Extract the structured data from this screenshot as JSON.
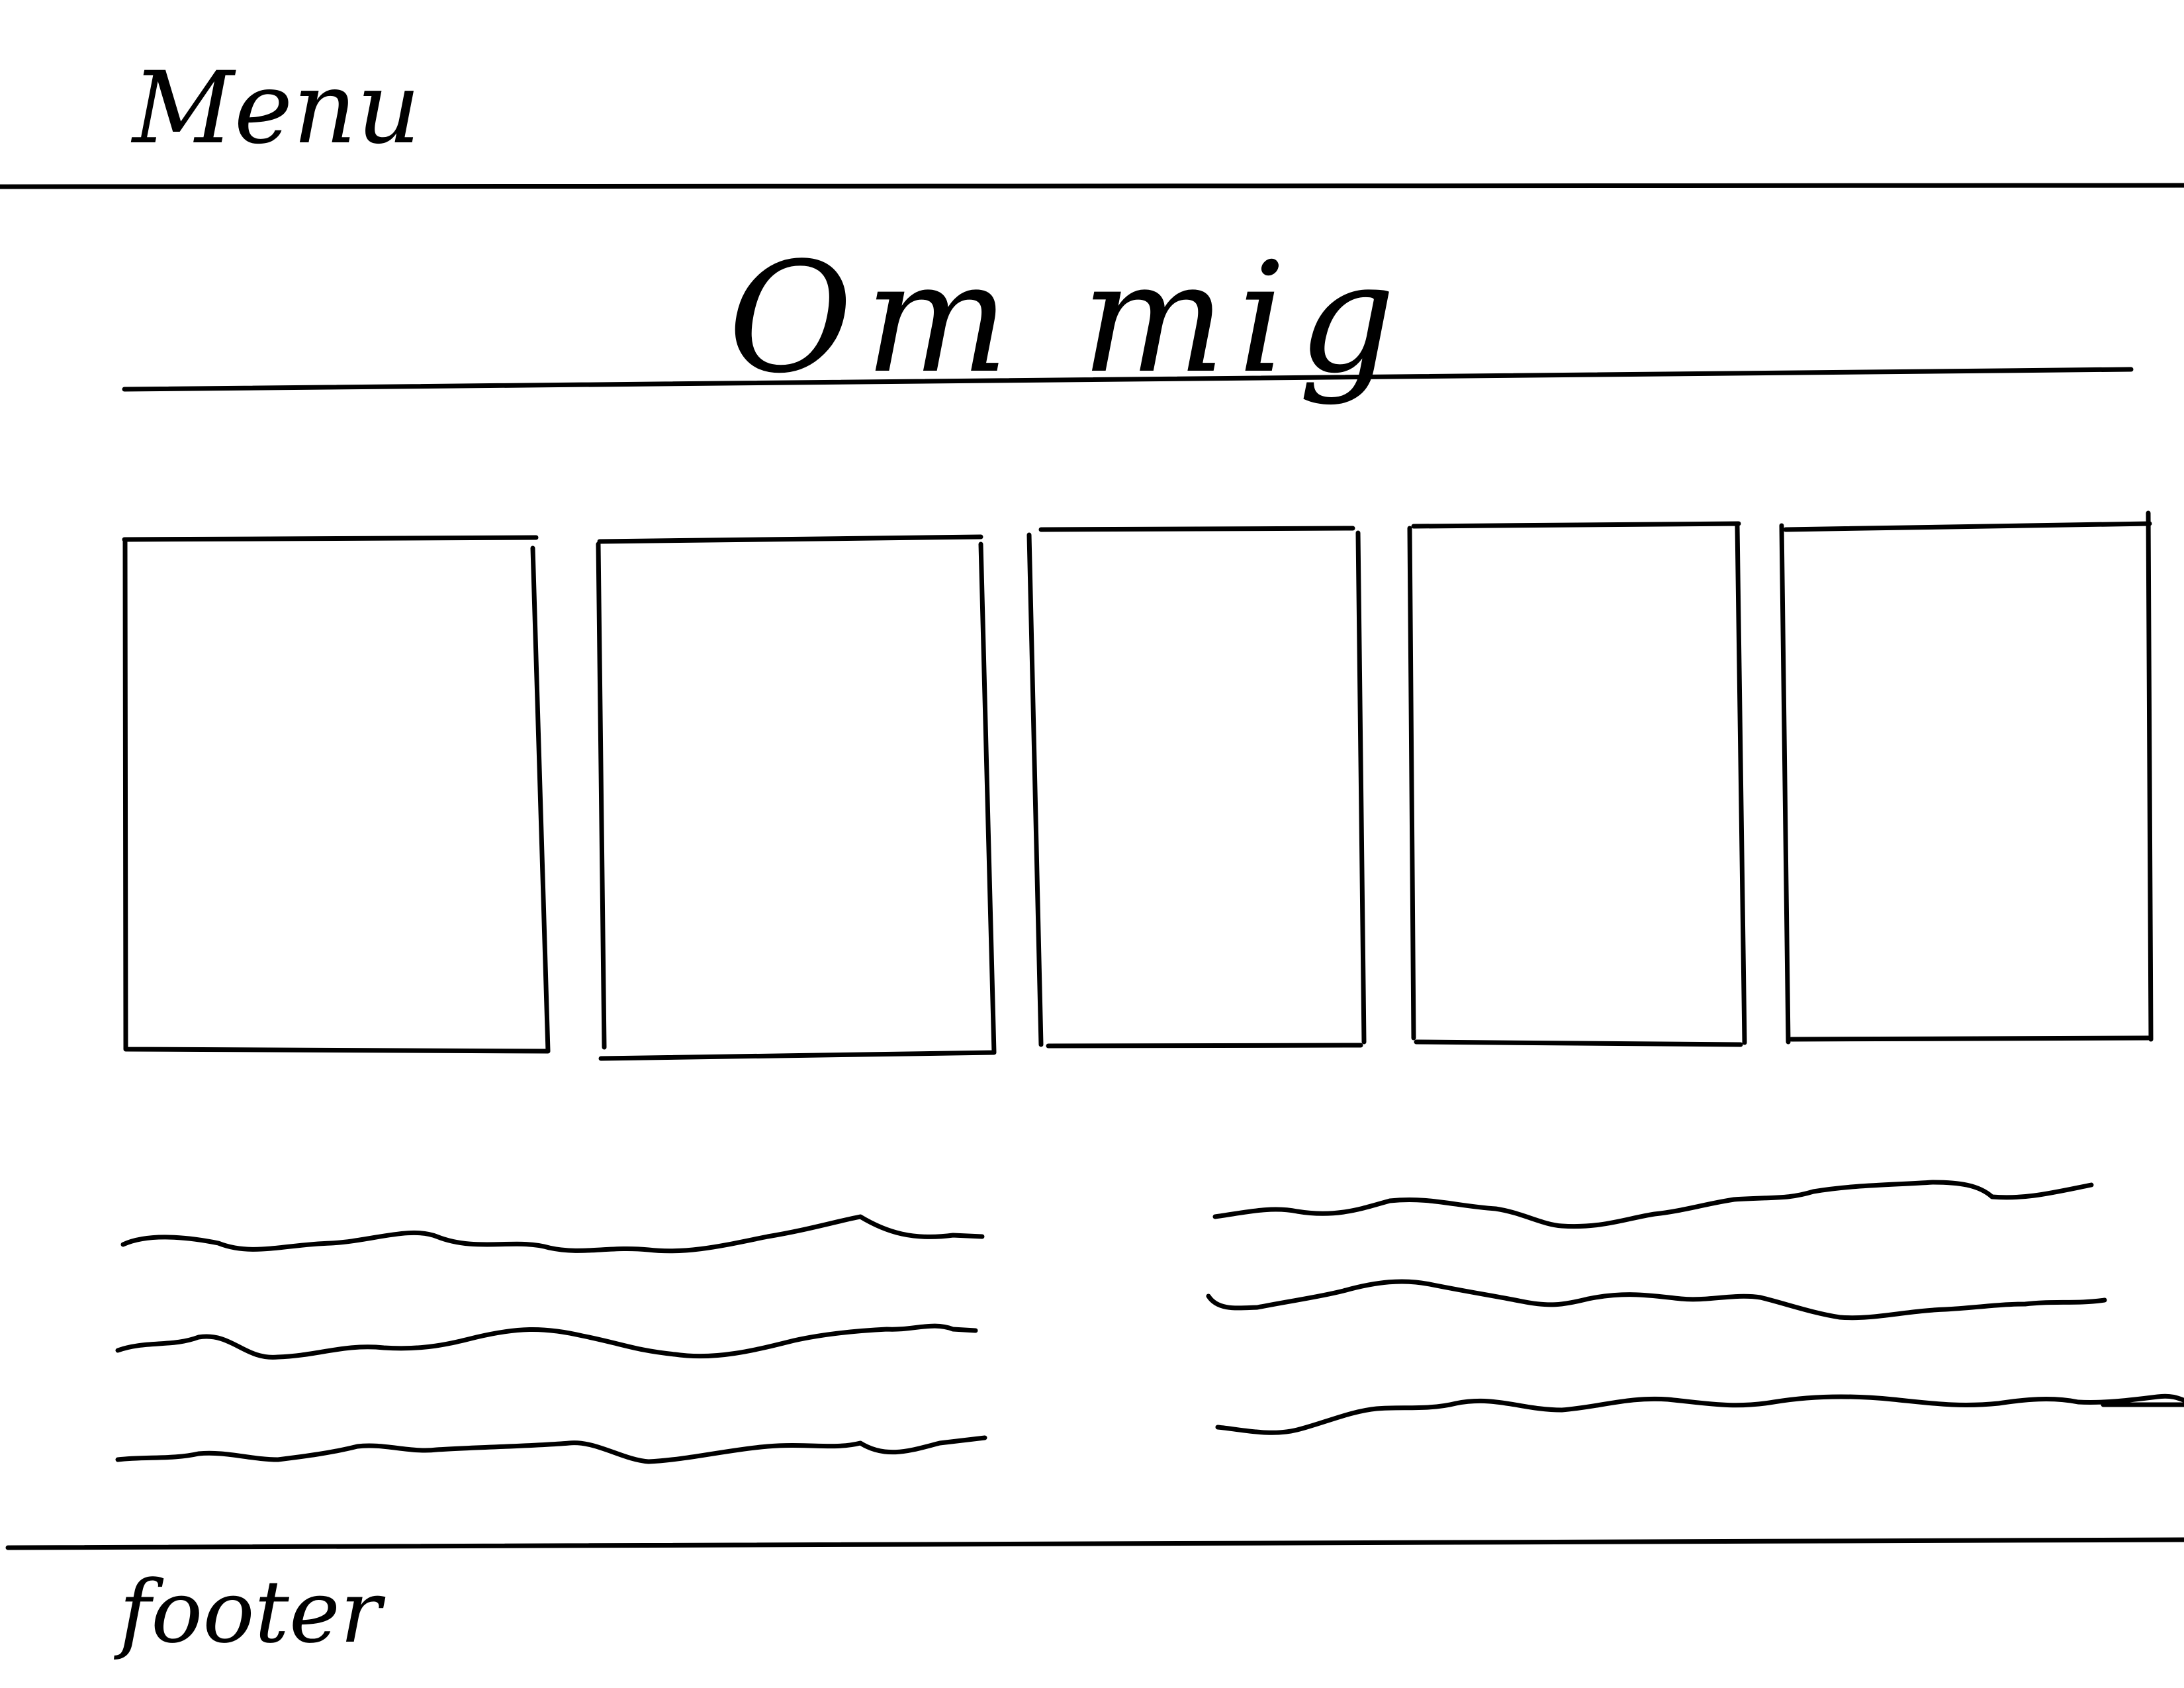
{
  "header": {
    "menu_label": "Menu"
  },
  "main": {
    "title": "Om mig",
    "cards": [
      {
        "id": "card-1"
      },
      {
        "id": "card-2"
      },
      {
        "id": "card-3"
      },
      {
        "id": "card-4"
      },
      {
        "id": "card-5"
      }
    ],
    "text_columns": [
      {
        "lines": 3
      },
      {
        "lines": 3
      }
    ]
  },
  "footer": {
    "label": "footer"
  },
  "colors": {
    "ink": "#000000",
    "background": "#ffffff"
  }
}
